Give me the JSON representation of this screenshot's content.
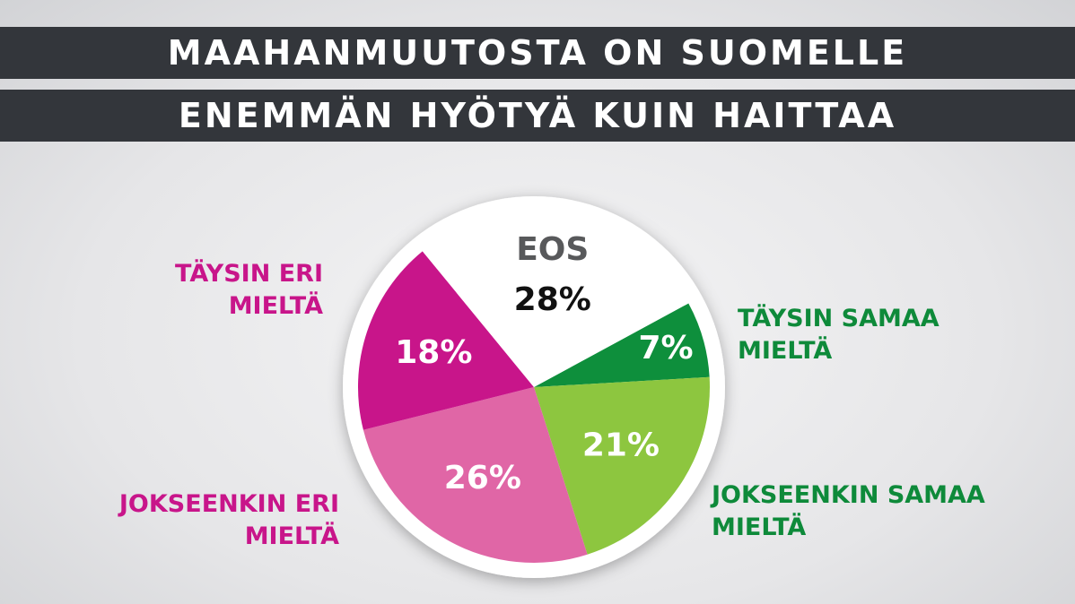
{
  "chart_data": {
    "type": "pie",
    "title_lines": [
      "MAAHANMUUTOSTA ON SUOMELLE",
      "ENEMMÄN HYÖTYÄ KUIN HAITTAA"
    ],
    "categories": [
      "TÄYSIN SAMAA MIELTÄ",
      "JOKSEENKIN SAMAA MIELTÄ",
      "JOKSEENKIN ERI MIELTÄ",
      "TÄYSIN ERI MIELTÄ",
      "EOS"
    ],
    "values": [
      7,
      21,
      26,
      18,
      28
    ],
    "value_labels": [
      "7%",
      "21%",
      "26%",
      "18%",
      "28%"
    ],
    "colors": [
      "#0e8f3c",
      "#8dc63f",
      "#e066a6",
      "#c8158a",
      "#ffffff"
    ],
    "label_colors": [
      "#0e8a3a",
      "#0e8a3a",
      "#c8158a",
      "#c8158a",
      "#58595b"
    ],
    "value_label_colors": [
      "#ffffff",
      "#ffffff",
      "#ffffff",
      "#ffffff",
      "#111111"
    ]
  }
}
